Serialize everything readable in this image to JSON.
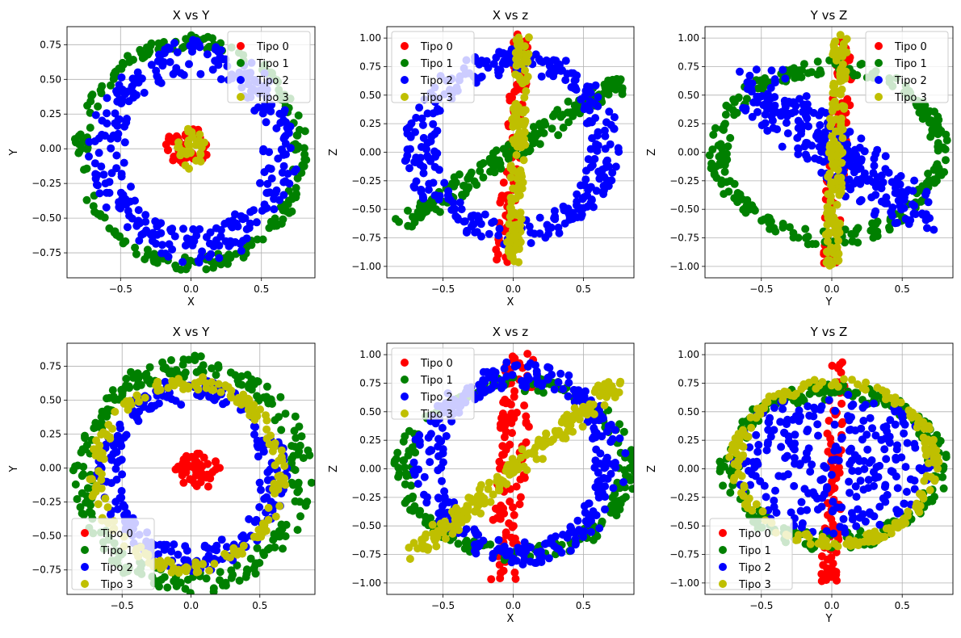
{
  "colors": {
    "Tipo 0": "#ff0000",
    "Tipo 1": "#008000",
    "Tipo 2": "#0000ff",
    "Tipo 3": "#bfbf00"
  },
  "chart_data": [
    {
      "type": "scatter",
      "title": "X vs Y",
      "xlabel": "X",
      "ylabel": "Y",
      "xlim": [
        -0.88,
        0.88
      ],
      "ylim": [
        -0.93,
        0.88
      ],
      "xticks": [
        -0.5,
        0.0,
        0.5
      ],
      "xtick_labels": [
        "−0.5",
        "0.0",
        "0.5"
      ],
      "yticks": [
        -0.75,
        -0.5,
        -0.25,
        0.0,
        0.25,
        0.5,
        0.75
      ],
      "ytick_labels": [
        "−0.75",
        "−0.50",
        "−0.25",
        "0.00",
        "0.25",
        "0.50",
        "0.75"
      ],
      "grid": true,
      "legend": "upper right",
      "series": [
        {
          "name": "Tipo 0",
          "shape": "blob",
          "cx": -0.02,
          "cy": 0.02,
          "rx": 0.16,
          "ry": 0.14,
          "n": 45
        },
        {
          "name": "Tipo 1",
          "shape": "ring",
          "cx": 0.0,
          "cy": -0.03,
          "r": 0.78,
          "ry": 0.8,
          "w": 0.05,
          "n": 220
        },
        {
          "name": "Tipo 2",
          "shape": "ring",
          "cx": 0.02,
          "cy": -0.02,
          "r": 0.62,
          "ry": 0.68,
          "w": 0.13,
          "n": 320
        },
        {
          "name": "Tipo 3",
          "shape": "blob",
          "cx": 0.0,
          "cy": 0.0,
          "rx": 0.1,
          "ry": 0.15,
          "n": 35
        }
      ]
    },
    {
      "type": "scatter",
      "title": "X vs z",
      "xlabel": "X",
      "ylabel": "Z",
      "xlim": [
        -0.9,
        0.86
      ],
      "ylim": [
        -1.1,
        1.1
      ],
      "xticks": [
        -0.5,
        0.0,
        0.5
      ],
      "xtick_labels": [
        "−0.5",
        "0.0",
        "0.5"
      ],
      "yticks": [
        -1.0,
        -0.75,
        -0.5,
        -0.25,
        0.0,
        0.25,
        0.5,
        0.75,
        1.0
      ],
      "ytick_labels": [
        "−1.00",
        "−0.75",
        "−0.50",
        "−0.25",
        "0.00",
        "0.25",
        "0.50",
        "0.75",
        "1.00"
      ],
      "grid": true,
      "legend": "upper left",
      "series": [
        {
          "name": "Tipo 0",
          "shape": "line",
          "x0": -0.07,
          "y0": -0.98,
          "x1": 0.06,
          "y1": 1.0,
          "w": 0.06,
          "n": 90
        },
        {
          "name": "Tipo 1",
          "shape": "line",
          "x0": -0.78,
          "y0": -0.62,
          "x1": 0.76,
          "y1": 0.62,
          "w": 0.07,
          "n": 180
        },
        {
          "name": "Tipo 2",
          "shape": "ring",
          "cx": 0.0,
          "cy": 0.05,
          "r": 0.66,
          "ry": 0.75,
          "w": 0.12,
          "n": 320
        },
        {
          "name": "Tipo 3",
          "shape": "line",
          "x0": 0.0,
          "y0": -0.95,
          "x1": 0.07,
          "y1": 1.0,
          "w": 0.05,
          "n": 150
        }
      ]
    },
    {
      "type": "scatter",
      "title": "Y vs Z",
      "xlabel": "Y",
      "ylabel": "Z",
      "xlim": [
        -0.9,
        0.86
      ],
      "ylim": [
        -1.1,
        1.1
      ],
      "xticks": [
        -0.5,
        0.0,
        0.5
      ],
      "xtick_labels": [
        "−0.5",
        "0.0",
        "0.5"
      ],
      "yticks": [
        -1.0,
        -0.75,
        -0.5,
        -0.25,
        0.0,
        0.25,
        0.5,
        0.75,
        1.0
      ],
      "ytick_labels": [
        "−1.00",
        "−0.75",
        "−0.50",
        "−0.25",
        "0.00",
        "0.25",
        "0.50",
        "0.75",
        "1.00"
      ],
      "grid": true,
      "legend": "upper right",
      "series": [
        {
          "name": "Tipo 0",
          "shape": "line",
          "x0": -0.02,
          "y0": -1.0,
          "x1": 0.1,
          "y1": 1.0,
          "w": 0.06,
          "n": 90
        },
        {
          "name": "Tipo 1",
          "shape": "ring",
          "cx": -0.02,
          "cy": 0.0,
          "r": 0.78,
          "ry": 0.75,
          "w": 0.07,
          "n": 260
        },
        {
          "name": "Tipo 2",
          "shape": "line",
          "x0": -0.58,
          "y0": 0.6,
          "x1": 0.6,
          "y1": -0.55,
          "w": 0.18,
          "n": 260
        },
        {
          "name": "Tipo 3",
          "shape": "line",
          "x0": 0.0,
          "y0": -0.98,
          "x1": 0.06,
          "y1": 1.0,
          "w": 0.05,
          "n": 150
        }
      ]
    },
    {
      "type": "scatter",
      "title": "X vs Y",
      "xlabel": "",
      "ylabel": "Y",
      "xlim": [
        -0.9,
        0.9
      ],
      "ylim": [
        -0.93,
        0.92
      ],
      "xticks": [
        -0.5,
        0.0,
        0.5
      ],
      "xtick_labels": [
        "−0.5",
        "0.0",
        "0.5"
      ],
      "yticks": [
        -0.75,
        -0.5,
        -0.25,
        0.0,
        0.25,
        0.5,
        0.75
      ],
      "ytick_labels": [
        "−0.75",
        "−0.50",
        "−0.25",
        "0.00",
        "0.25",
        "0.50",
        "0.75"
      ],
      "grid": true,
      "legend": "lower left",
      "series": [
        {
          "name": "Tipo 0",
          "shape": "blob",
          "cx": 0.05,
          "cy": -0.02,
          "rx": 0.17,
          "ry": 0.13,
          "n": 50
        },
        {
          "name": "Tipo 1",
          "shape": "ring",
          "cx": 0.0,
          "cy": -0.05,
          "r": 0.8,
          "ry": 0.8,
          "w": 0.08,
          "n": 260
        },
        {
          "name": "Tipo 2",
          "shape": "ring",
          "cx": 0.0,
          "cy": -0.05,
          "r": 0.6,
          "ry": 0.62,
          "w": 0.1,
          "n": 260
        },
        {
          "name": "Tipo 3",
          "shape": "ring",
          "cx": -0.02,
          "cy": -0.05,
          "r": 0.67,
          "ry": 0.68,
          "w": 0.05,
          "n": 200
        }
      ]
    },
    {
      "type": "scatter",
      "title": "X vs z",
      "xlabel": "X",
      "ylabel": "Z",
      "xlim": [
        -0.9,
        0.86
      ],
      "ylim": [
        -1.1,
        1.1
      ],
      "xticks": [
        -0.5,
        0.0,
        0.5
      ],
      "xtick_labels": [
        "−0.5",
        "0.0",
        "0.5"
      ],
      "yticks": [
        -1.0,
        -0.75,
        -0.5,
        -0.25,
        0.0,
        0.25,
        0.5,
        0.75,
        1.0
      ],
      "ytick_labels": [
        "−1.00",
        "−0.75",
        "−0.50",
        "−0.25",
        "0.00",
        "0.25",
        "0.50",
        "0.75",
        "1.00"
      ],
      "grid": true,
      "legend": "upper left",
      "series": [
        {
          "name": "Tipo 0",
          "shape": "line",
          "x0": -0.08,
          "y0": -0.98,
          "x1": 0.05,
          "y1": 0.98,
          "w": 0.1,
          "n": 120
        },
        {
          "name": "Tipo 1",
          "shape": "ring",
          "cx": 0.02,
          "cy": 0.0,
          "r": 0.8,
          "ry": 0.75,
          "w": 0.07,
          "n": 220
        },
        {
          "name": "Tipo 2",
          "shape": "ring",
          "cx": 0.05,
          "cy": 0.05,
          "r": 0.65,
          "ry": 0.78,
          "w": 0.12,
          "n": 320
        },
        {
          "name": "Tipo 3",
          "shape": "line",
          "x0": -0.72,
          "y0": -0.76,
          "x1": 0.75,
          "y1": 0.75,
          "w": 0.07,
          "n": 180
        }
      ]
    },
    {
      "type": "scatter",
      "title": "Y vs Z",
      "xlabel": "Y",
      "ylabel": "Z",
      "xlim": [
        -0.9,
        0.86
      ],
      "ylim": [
        -1.1,
        1.1
      ],
      "xticks": [
        -0.5,
        0.0,
        0.5
      ],
      "xtick_labels": [
        "−0.5",
        "0.0",
        "0.5"
      ],
      "yticks": [
        -1.0,
        -0.75,
        -0.5,
        -0.25,
        0.0,
        0.25,
        0.5,
        0.75,
        1.0
      ],
      "ytick_labels": [
        "−1.00",
        "−0.75",
        "−0.50",
        "−0.25",
        "0.00",
        "0.25",
        "0.50",
        "0.75",
        "1.00"
      ],
      "grid": true,
      "legend": "lower left",
      "series": [
        {
          "name": "Tipo 0",
          "shape": "line",
          "x0": -0.02,
          "y0": -1.0,
          "x1": 0.05,
          "y1": 1.0,
          "w": 0.06,
          "n": 90
        },
        {
          "name": "Tipo 1",
          "shape": "ring",
          "cx": 0.02,
          "cy": 0.02,
          "r": 0.74,
          "ry": 0.66,
          "w": 0.08,
          "n": 240
        },
        {
          "name": "Tipo 2",
          "shape": "blob",
          "cx": 0.0,
          "cy": 0.05,
          "rx": 0.72,
          "ry": 0.62,
          "n": 260
        },
        {
          "name": "Tipo 3",
          "shape": "ring",
          "cx": 0.02,
          "cy": 0.05,
          "r": 0.7,
          "ry": 0.7,
          "w": 0.05,
          "n": 200
        }
      ]
    }
  ]
}
